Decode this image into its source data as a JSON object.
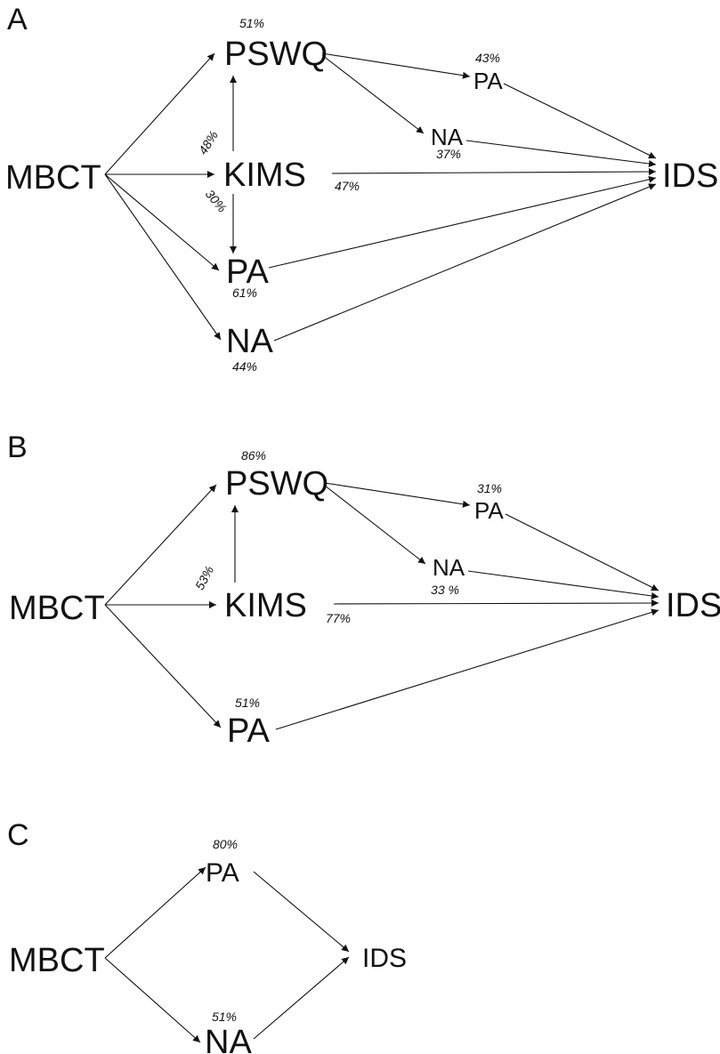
{
  "panels": {
    "a": {
      "letter": "A",
      "nodes": {
        "mbct": "MBCT",
        "pswq": "PSWQ",
        "kims": "KIMS",
        "pa": "PA",
        "na": "NA",
        "pa2": "PA",
        "na2": "NA",
        "ids": "IDS"
      },
      "labels": {
        "pswq": "51%",
        "pa2": "43%",
        "na2": "37%",
        "kims_pswq": "48%",
        "kims_pa": "30%",
        "kims_ids": "47%",
        "pa": "61%",
        "na": "44%"
      }
    },
    "b": {
      "letter": "B",
      "nodes": {
        "mbct": "MBCT",
        "pswq": "PSWQ",
        "kims": "KIMS",
        "pa": "PA",
        "pa2": "PA",
        "na2": "NA",
        "ids": "IDS"
      },
      "labels": {
        "pswq": "86%",
        "pa2": "31%",
        "na2": "33 %",
        "kims_pswq": "53%",
        "kims_ids": "77%",
        "pa": "51%"
      }
    },
    "c": {
      "letter": "C",
      "nodes": {
        "mbct": "MBCT",
        "pa": "PA",
        "na": "NA",
        "ids": "IDS"
      },
      "labels": {
        "pa": "80%",
        "na": "51%"
      }
    }
  }
}
